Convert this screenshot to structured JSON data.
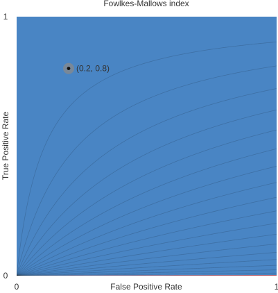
{
  "chart_data": {
    "type": "heatmap",
    "title": "Fowlkes-Mallows index",
    "xlabel": "False Positive Rate",
    "ylabel": "True Positive Rate",
    "xlim": [
      0,
      1
    ],
    "ylim": [
      0,
      1
    ],
    "x_ticks": [
      "0",
      "1"
    ],
    "y_ticks": [
      "0",
      "1"
    ],
    "grid": false,
    "legend": "none",
    "color_scale": {
      "low_color": "#3f7fc1",
      "mid_color": "#ffffff",
      "high_color": "#cb4a56",
      "mid_value": 0.5,
      "levels": 20
    },
    "point": {
      "x": 0.2,
      "y": 0.8,
      "label": "(0.2, 0.8)"
    }
  }
}
